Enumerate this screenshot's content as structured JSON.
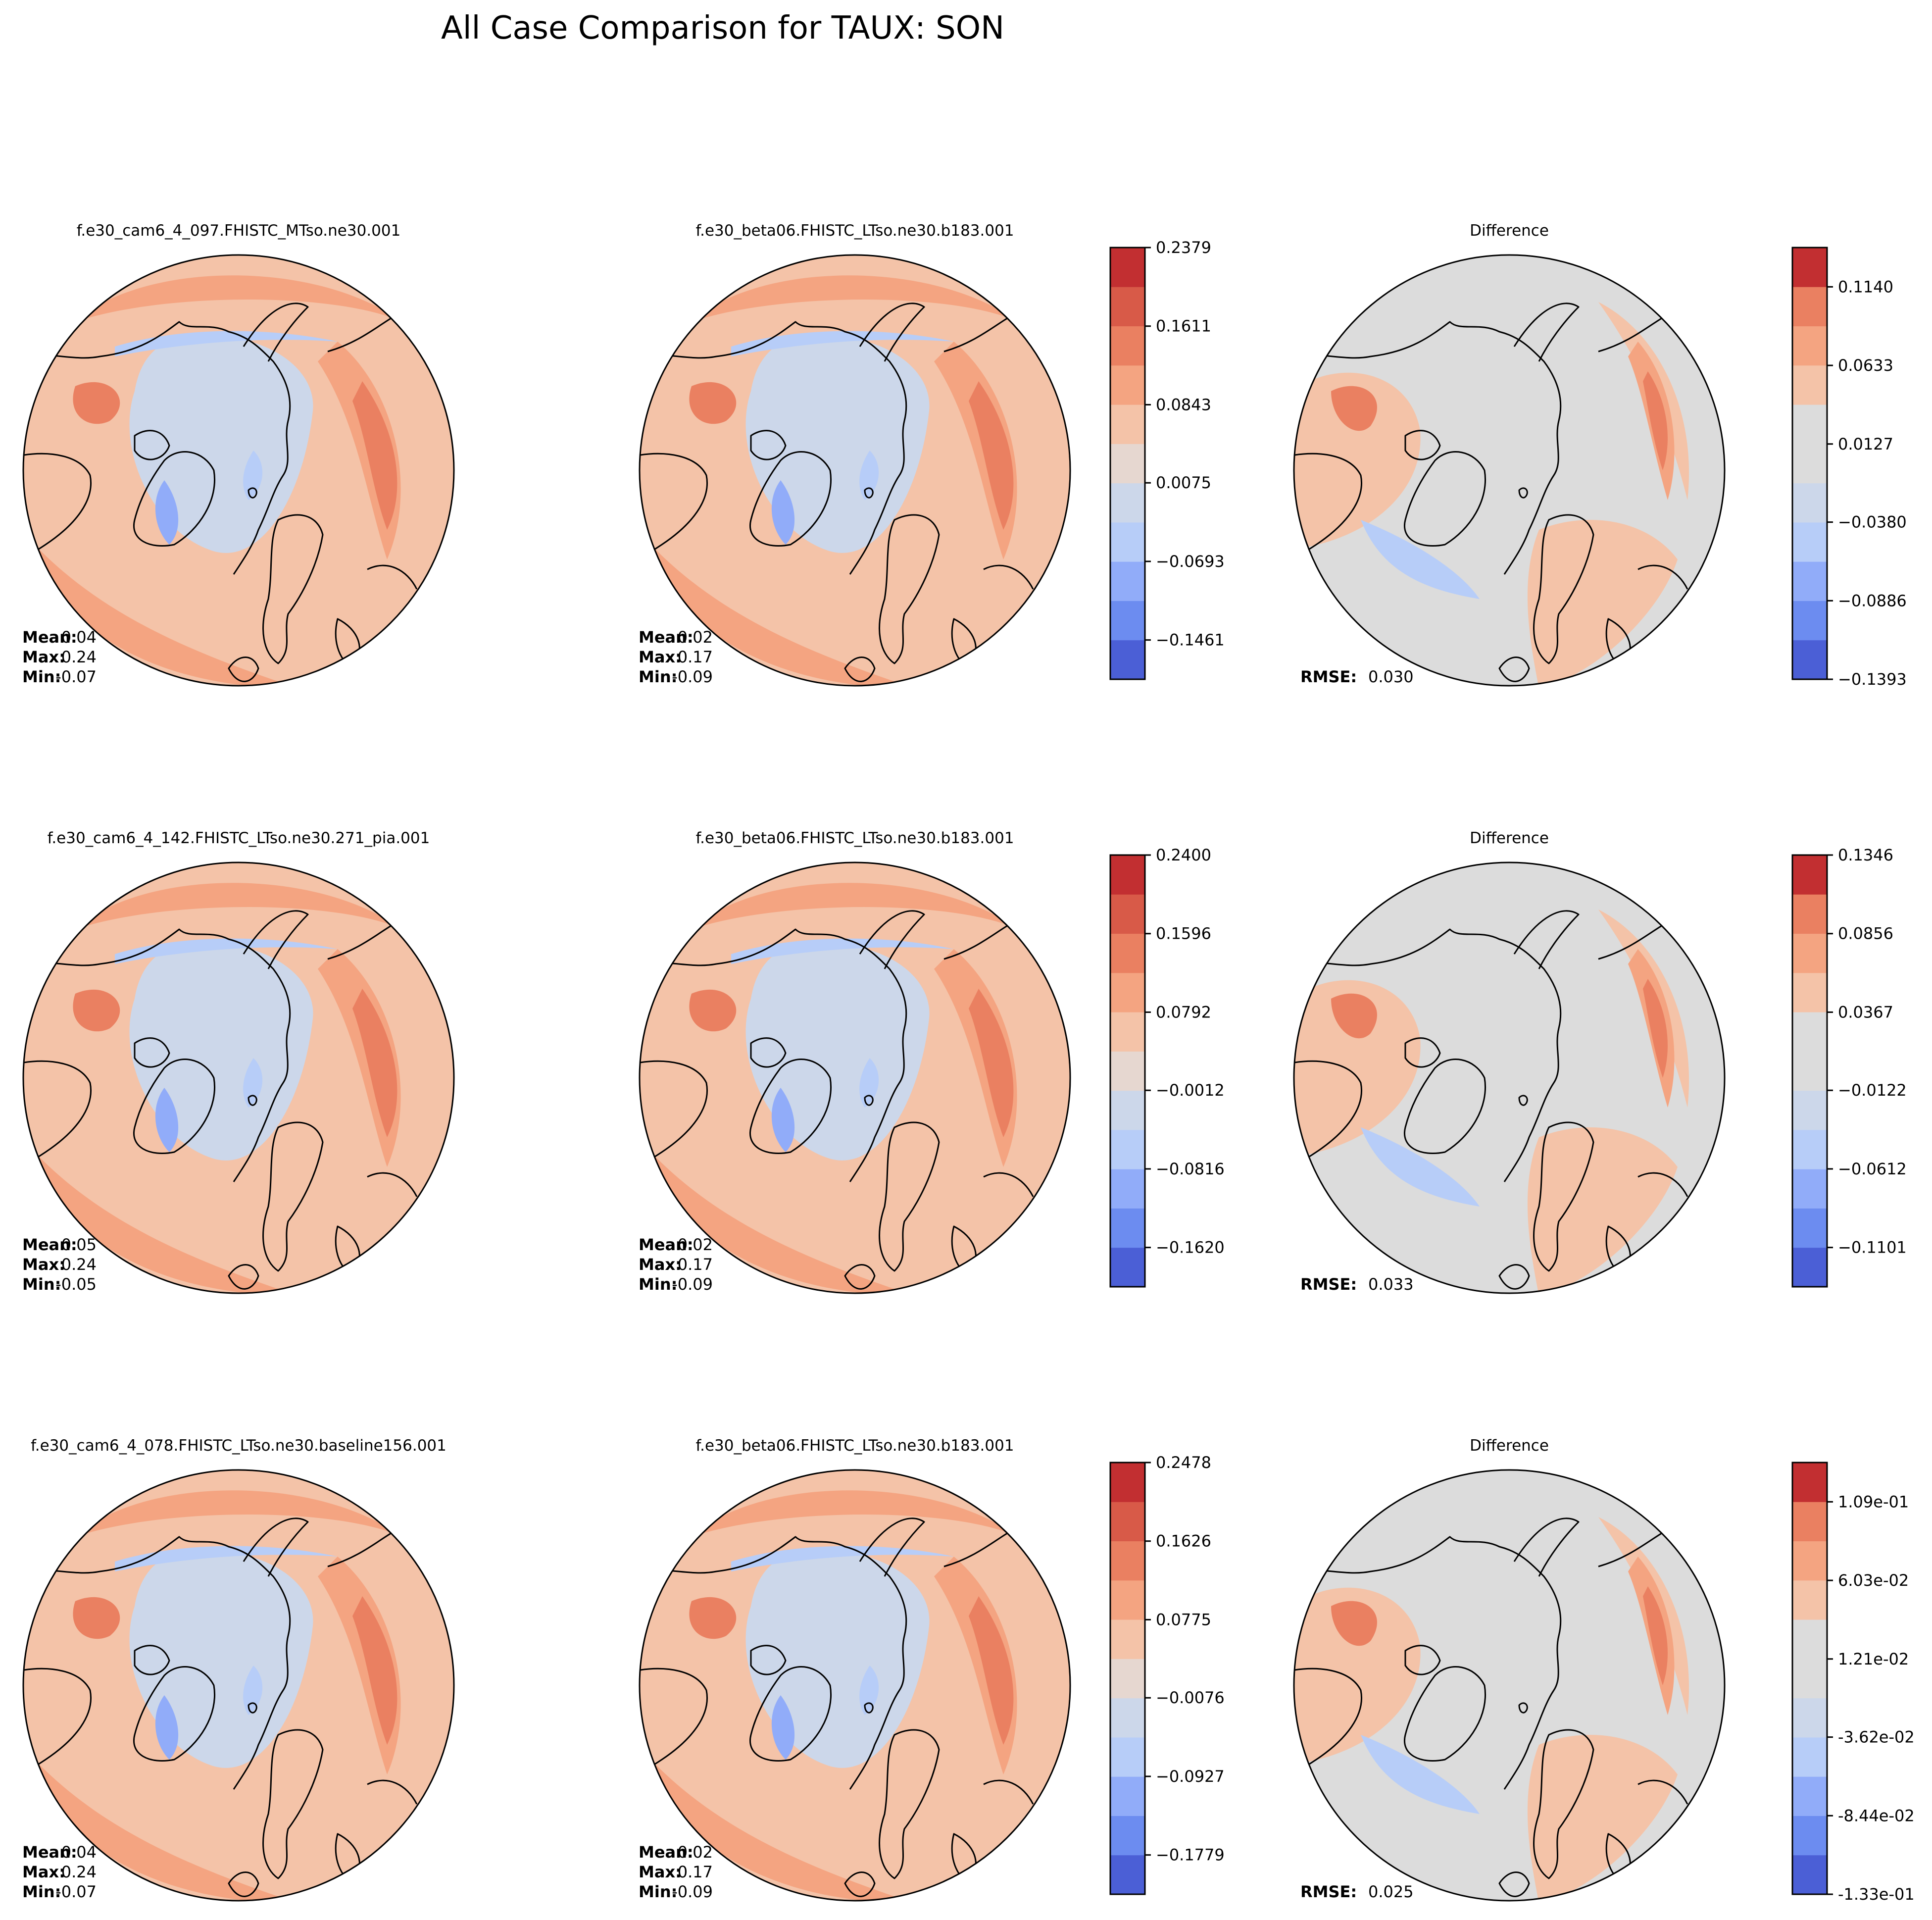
{
  "title": "All Case Comparison for TAUX: SON",
  "colors": {
    "blue_4": "#4b5fd6",
    "blue_3": "#6c8cf0",
    "blue_2": "#91acf9",
    "blue_1": "#b7cdf8",
    "neutral_blue": "#ccd7ea",
    "neutral": "#dcdcdc",
    "neutral_warm": "#e6d7d0",
    "red_1": "#f4c3a8",
    "red_2": "#f4a481",
    "red_3": "#ea8061",
    "red_4": "#d85a48",
    "red_5": "#c22f31",
    "coast": "#000000"
  },
  "rows": [
    {
      "test": {
        "label": "f.e30_cam6_4_097.FHISTC_MTso.ne30.001",
        "mean_label": "Mean:",
        "mean": "0.04",
        "max_label": "Max:",
        "max": "0.24",
        "min_label": "Min:",
        "min": "-0.07"
      },
      "baseline": {
        "label": "f.e30_beta06.FHISTC_LTso.ne30.b183.001",
        "mean_label": "Mean:",
        "mean": "0.02",
        "max_label": "Max:",
        "max": "0.17",
        "min_label": "Min:",
        "min": "-0.09"
      },
      "colorbar": {
        "ticks": [
          "0.2379",
          "0.1611",
          "0.0843",
          "0.0075",
          "−0.0693",
          "−0.1461"
        ],
        "tick_fracs": [
          1.0,
          0.818,
          0.636,
          0.455,
          0.273,
          0.091
        ]
      },
      "difference": {
        "label": "Difference",
        "rmse_label": "RMSE:",
        "rmse": "0.030"
      },
      "diff_colorbar": {
        "ticks": [
          "0.1140",
          "0.0633",
          "0.0127",
          "−0.0380",
          "−0.0886",
          "−0.1393"
        ],
        "tick_fracs": [
          0.909,
          0.727,
          0.545,
          0.364,
          0.182,
          0.0
        ]
      }
    },
    {
      "test": {
        "label": "f.e30_cam6_4_142.FHISTC_LTso.ne30.271_pia.001",
        "mean_label": "Mean:",
        "mean": "0.05",
        "max_label": "Max:",
        "max": "0.24",
        "min_label": "Min:",
        "min": "-0.05"
      },
      "baseline": {
        "label": "f.e30_beta06.FHISTC_LTso.ne30.b183.001",
        "mean_label": "Mean:",
        "mean": "0.02",
        "max_label": "Max:",
        "max": "0.17",
        "min_label": "Min:",
        "min": "-0.09"
      },
      "colorbar": {
        "ticks": [
          "0.2400",
          "0.1596",
          "0.0792",
          "−0.0012",
          "−0.0816",
          "−0.1620"
        ],
        "tick_fracs": [
          1.0,
          0.818,
          0.636,
          0.455,
          0.273,
          0.091
        ]
      },
      "difference": {
        "label": "Difference",
        "rmse_label": "RMSE:",
        "rmse": "0.033"
      },
      "diff_colorbar": {
        "ticks": [
          "0.1346",
          "0.0856",
          "0.0367",
          "−0.0122",
          "−0.0612",
          "−0.1101"
        ],
        "tick_fracs": [
          1.0,
          0.818,
          0.636,
          0.455,
          0.273,
          0.091
        ]
      }
    },
    {
      "test": {
        "label": "f.e30_cam6_4_078.FHISTC_LTso.ne30.baseline156.001",
        "mean_label": "Mean:",
        "mean": "0.04",
        "max_label": "Max:",
        "max": "0.24",
        "min_label": "Min:",
        "min": "-0.07"
      },
      "baseline": {
        "label": "f.e30_beta06.FHISTC_LTso.ne30.b183.001",
        "mean_label": "Mean:",
        "mean": "0.02",
        "max_label": "Max:",
        "max": "0.17",
        "min_label": "Min:",
        "min": "-0.09"
      },
      "colorbar": {
        "ticks": [
          "0.2478",
          "0.1626",
          "0.0775",
          "−0.0076",
          "−0.0927",
          "−0.1779"
        ],
        "tick_fracs": [
          1.0,
          0.818,
          0.636,
          0.455,
          0.273,
          0.091
        ]
      },
      "difference": {
        "label": "Difference",
        "rmse_label": "RMSE:",
        "rmse": "0.025"
      },
      "diff_colorbar": {
        "ticks": [
          "1.09e-01",
          "6.03e-02",
          "1.21e-02",
          "-3.62e-02",
          "-8.44e-02",
          "-1.33e-01"
        ],
        "tick_fracs": [
          0.909,
          0.727,
          0.545,
          0.364,
          0.182,
          0.0
        ]
      }
    }
  ]
}
